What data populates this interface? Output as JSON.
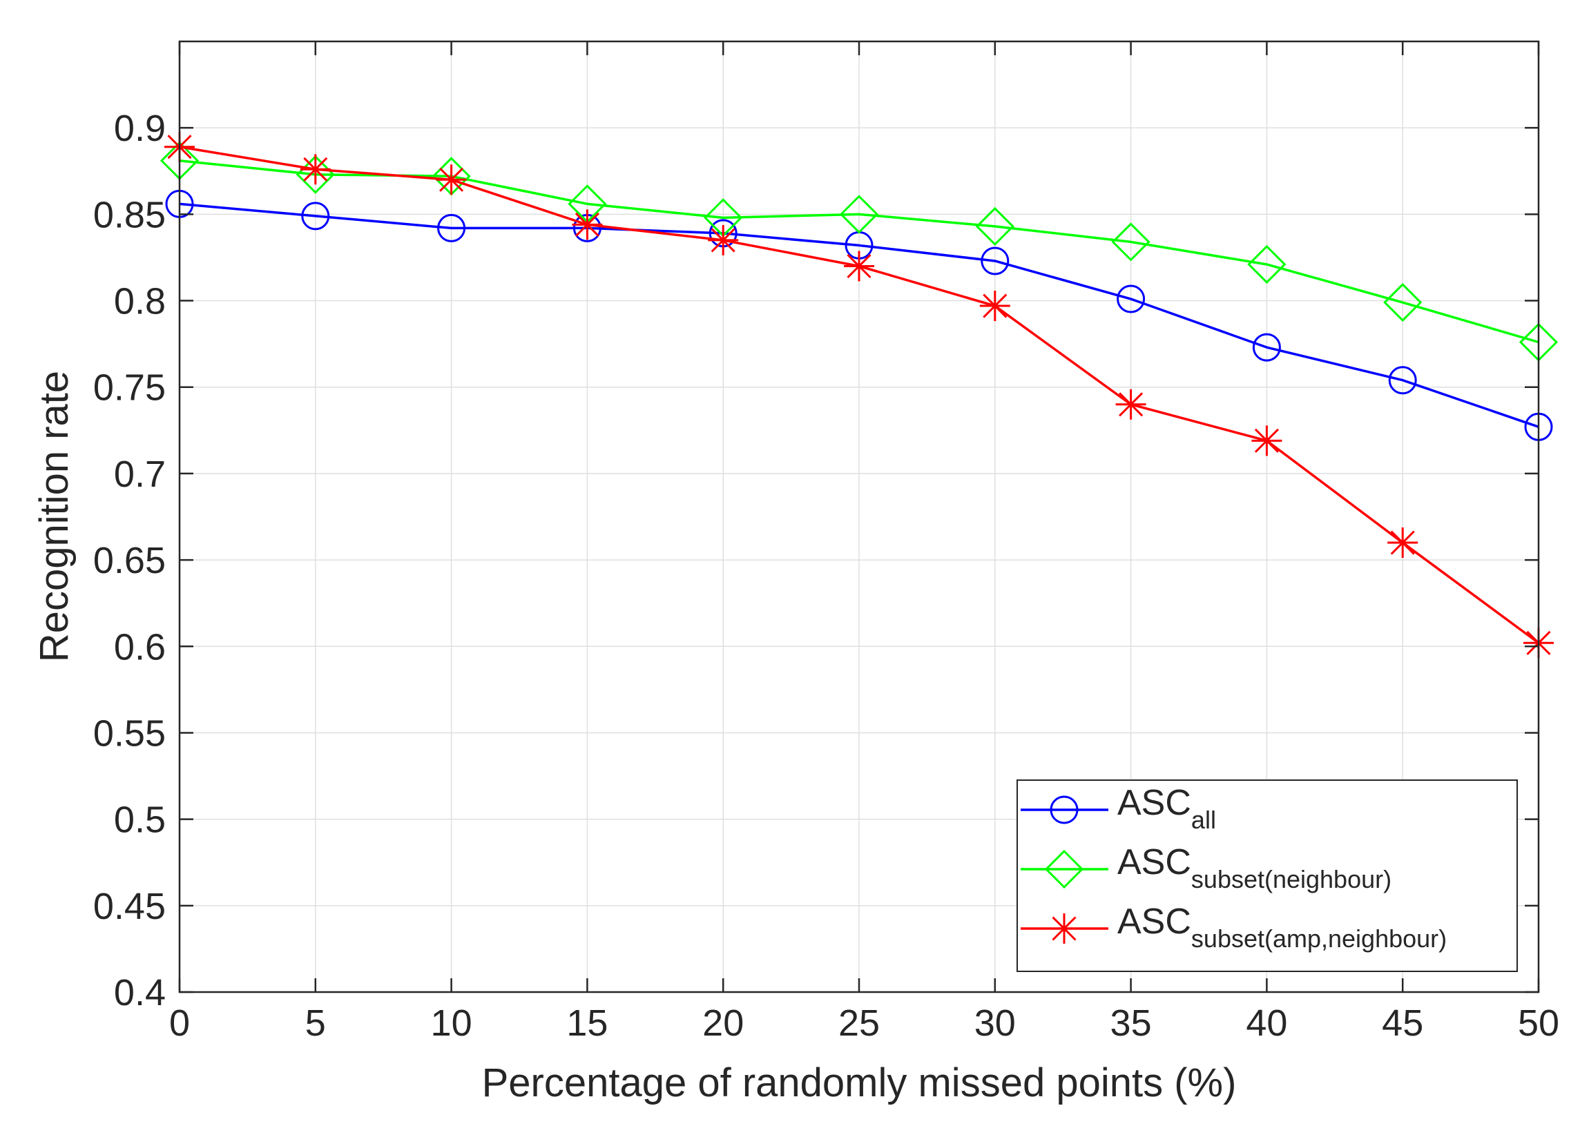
{
  "chart_data": {
    "type": "line",
    "xlabel": "Percentage of randomly missed points (%)",
    "ylabel": "Recognition rate",
    "xlim": [
      0,
      50
    ],
    "ylim": [
      0.4,
      0.95
    ],
    "xticks": [
      0,
      5,
      10,
      15,
      20,
      25,
      30,
      35,
      40,
      45,
      50
    ],
    "yticks": [
      0.4,
      0.45,
      0.5,
      0.55,
      0.6,
      0.65,
      0.7,
      0.75,
      0.8,
      0.85,
      0.9
    ],
    "grid": true,
    "legend_location": "bottom-right",
    "x": [
      0,
      5,
      10,
      15,
      20,
      25,
      30,
      35,
      40,
      45,
      50
    ],
    "series": [
      {
        "name": "ASC_all",
        "label_main": "ASC",
        "label_sub": "all",
        "color": "#0000ff",
        "marker": "circle",
        "values": [
          0.856,
          0.849,
          0.842,
          0.842,
          0.839,
          0.832,
          0.823,
          0.801,
          0.773,
          0.754,
          0.727
        ]
      },
      {
        "name": "ASC_subset(neighbour)",
        "label_main": "ASC",
        "label_sub": "subset(neighbour)",
        "color": "#00ff00",
        "marker": "diamond",
        "values": [
          0.881,
          0.873,
          0.872,
          0.856,
          0.848,
          0.85,
          0.843,
          0.834,
          0.821,
          0.799,
          0.776
        ]
      },
      {
        "name": "ASC_subset(amp,neighbour)",
        "label_main": "ASC",
        "label_sub": "subset(amp,neighbour)",
        "color": "#ff0000",
        "marker": "asterisk",
        "values": [
          0.889,
          0.876,
          0.87,
          0.844,
          0.835,
          0.82,
          0.797,
          0.74,
          0.719,
          0.66,
          0.602
        ]
      }
    ]
  }
}
